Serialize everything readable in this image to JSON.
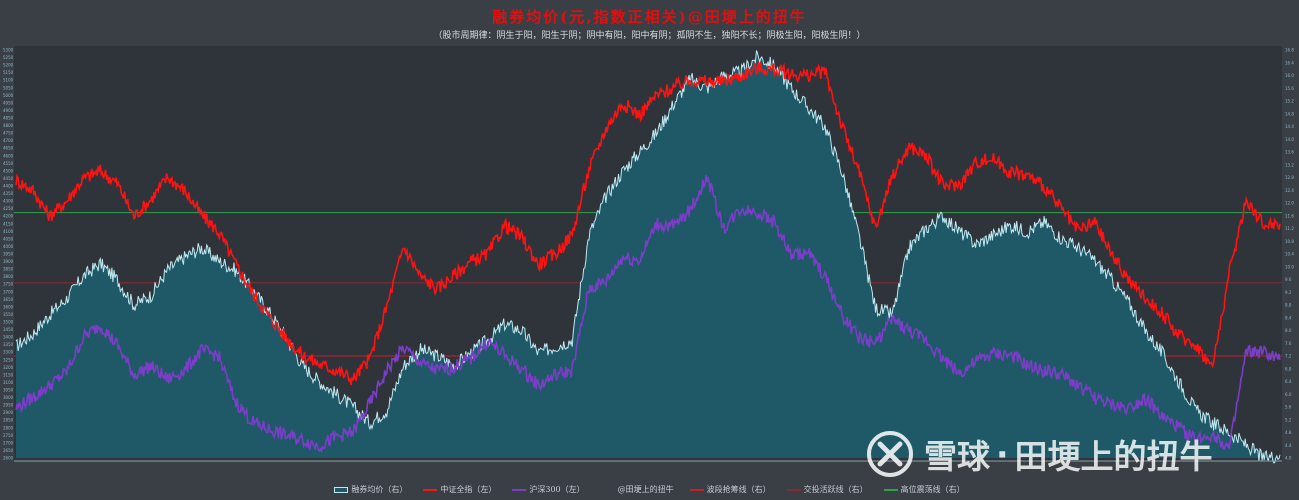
{
  "header": {
    "title": "融券均价(元,指数正相关)@田埂上的扭牛",
    "subtitle": "（股市周期律：阴生于阳，阳生于阴；阴中有阳，阳中有阴；孤阴不生，独阳不长；阴极生阳，阳极生阴！）"
  },
  "watermark": {
    "brand": "雪球",
    "sep": "·",
    "author": "田埂上的扭牛",
    "icon": "snowball-logo-icon"
  },
  "chart_data": {
    "type": "line",
    "title": "融券均价(元,指数正相关)@田埂上的扭牛",
    "subtitle": "（股市周期律：阴生于阳，阳生于阴；阴中有阳，阳中有阴；孤阴不生，独阳不长；阴极生阳，阳极生阴！）",
    "grid": false,
    "legend_position": "bottom",
    "axes": {
      "left": {
        "range": [
          2600,
          5300
        ]
      },
      "right": {
        "range": [
          4.0,
          16.8
        ]
      }
    },
    "series": [
      {
        "name": "融券均价（右）",
        "type": "area",
        "axis": "right",
        "color": "#1f5866",
        "stroke": "#bfe9f2",
        "values": [
          7.5,
          7.9,
          8.5,
          9.0,
          9.7,
          10.1,
          9.6,
          8.8,
          9.1,
          9.9,
          10.3,
          10.6,
          10.2,
          9.9,
          9.3,
          8.6,
          7.8,
          6.9,
          6.4,
          6.0,
          5.6,
          5.1,
          5.5,
          6.9,
          7.4,
          7.2,
          6.9,
          7.3,
          7.7,
          8.2,
          8.0,
          7.3,
          7.5,
          7.7,
          11.0,
          12.2,
          13.0,
          13.6,
          14.2,
          15.1,
          15.9,
          15.6,
          16.0,
          16.1,
          16.6,
          16.3,
          15.6,
          15.0,
          14.4,
          13.0,
          11.0,
          8.7,
          8.5,
          10.6,
          11.2,
          11.6,
          11.1,
          10.7,
          11.0,
          11.3,
          11.1,
          11.4,
          10.9,
          10.6,
          10.2,
          9.6,
          8.9,
          8.0,
          7.3,
          6.4,
          5.5,
          5.1,
          4.8,
          4.4,
          4.0,
          4.1
        ]
      },
      {
        "name": "中证全指（左）",
        "type": "line",
        "axis": "left",
        "color": "#ff1212",
        "values": [
          4440,
          4370,
          4200,
          4300,
          4450,
          4500,
          4420,
          4200,
          4310,
          4460,
          4370,
          4210,
          4100,
          3890,
          3700,
          3540,
          3400,
          3280,
          3220,
          3180,
          3120,
          3260,
          3600,
          4000,
          3800,
          3720,
          3810,
          3900,
          3950,
          4140,
          4060,
          3880,
          3950,
          4080,
          4510,
          4780,
          4950,
          4870,
          5000,
          5050,
          5100,
          5090,
          5090,
          5130,
          5180,
          5170,
          5140,
          5130,
          5160,
          4800,
          4500,
          4120,
          4470,
          4660,
          4600,
          4400,
          4410,
          4560,
          4580,
          4490,
          4470,
          4400,
          4250,
          4100,
          4160,
          3950,
          3780,
          3660,
          3560,
          3410,
          3350,
          3200,
          3830,
          4310,
          4150,
          4150
        ]
      },
      {
        "name": "沪深300（左）",
        "type": "line",
        "axis": "left",
        "color": "#7a3ec8",
        "values": [
          2930,
          3000,
          3080,
          3170,
          3400,
          3480,
          3350,
          3150,
          3210,
          3120,
          3180,
          3310,
          3280,
          2980,
          2840,
          2790,
          2750,
          2720,
          2680,
          2740,
          2770,
          2960,
          3180,
          3330,
          3230,
          3180,
          3200,
          3260,
          3370,
          3280,
          3190,
          3080,
          3150,
          3180,
          3720,
          3770,
          3930,
          3910,
          4150,
          4130,
          4240,
          4460,
          4120,
          4250,
          4230,
          4160,
          3940,
          3960,
          3800,
          3550,
          3400,
          3360,
          3520,
          3440,
          3380,
          3260,
          3160,
          3240,
          3290,
          3280,
          3210,
          3180,
          3150,
          3080,
          3000,
          2950,
          2930,
          3000,
          2870,
          2800,
          2720,
          2760,
          2660,
          3300,
          3300,
          3250
        ]
      },
      {
        "name": "@田埂上的扭牛",
        "type": "legend-only",
        "color": "#3a3f46"
      },
      {
        "name": "波段抢筹线（右）",
        "type": "hline",
        "axis": "right",
        "color": "#c81e2c",
        "value": 7.2
      },
      {
        "name": "交投活跃线（右）",
        "type": "hline",
        "axis": "right",
        "color": "#8a2a35",
        "value": 9.5
      },
      {
        "name": "高位震荡线（右）",
        "type": "hline",
        "axis": "right",
        "color": "#2fa24e",
        "value": 11.7
      }
    ],
    "axis_ticks": {
      "left": [
        "5300",
        "5250",
        "5200",
        "5150",
        "5100",
        "5050",
        "5000",
        "4950",
        "4900",
        "4850",
        "4800",
        "4750",
        "4700",
        "4650",
        "4600",
        "4550",
        "4500",
        "4450",
        "4400",
        "4350",
        "4300",
        "4250",
        "4200",
        "4150",
        "4100",
        "4050",
        "4000",
        "3950",
        "3900",
        "3850",
        "3800",
        "3750",
        "3700",
        "3650",
        "3600",
        "3550",
        "3500",
        "3450",
        "3400",
        "3350",
        "3300",
        "3250",
        "3200",
        "3150",
        "3100",
        "3050",
        "3000",
        "2950",
        "2900",
        "2850",
        "2800",
        "2750",
        "2700",
        "2650",
        "2600"
      ],
      "right": [
        "16.8",
        "16.4",
        "16.0",
        "15.6",
        "15.2",
        "14.8",
        "14.4",
        "14.0",
        "13.6",
        "13.2",
        "12.8",
        "12.4",
        "12.0",
        "11.6",
        "11.2",
        "10.8",
        "10.4",
        "10.0",
        "9.6",
        "9.2",
        "8.8",
        "8.4",
        "8.0",
        "7.6",
        "7.2",
        "6.8",
        "6.4",
        "6.0",
        "5.6",
        "5.2",
        "4.8",
        "4.4",
        "4.0"
      ]
    }
  }
}
